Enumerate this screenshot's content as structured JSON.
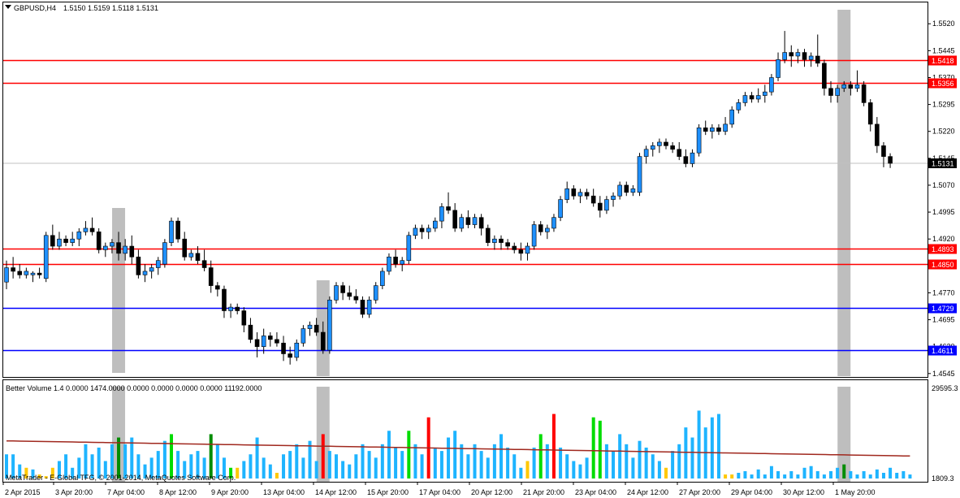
{
  "header": {
    "title": "GBPUSD,H4",
    "prices": "1.5150 1.5159 1.5118 1.5131",
    "menu_icon": "triangle-down-icon"
  },
  "indicator": {
    "title": "Better Volume 1.4 0.0000 1474.0000 0.0000 0.0000 0.0000 0.0000 11192.0000",
    "scale_top": "29595.3",
    "scale_bottom": "1809.3"
  },
  "footer": {
    "copyright": "MetaTrader - E-Global TFG, © 2001-2014, MetaQuotes Software Corp."
  },
  "colors": {
    "bull": "#1e90ff",
    "bear": "#000000",
    "level_red": "#ff0000",
    "level_blue": "#0000ff",
    "highlight": "#bebebe",
    "volume_normal": "#1eb4ff",
    "volume_climax": "#ff0000",
    "volume_churn": "#00dc00",
    "volume_churn_dark": "#008c00",
    "volume_low": "#ffc800",
    "volume_ma": "#a0281e",
    "price_tag": "#000000"
  },
  "chart_data": {
    "type": "candlestick",
    "symbol": "GBPUSD",
    "timeframe": "H4",
    "ylim": [
      1.454,
      1.555
    ],
    "y_ticks": [
      "1.5520",
      "1.5445",
      "1.5370",
      "1.5295",
      "1.5220",
      "1.5145",
      "1.5070",
      "1.4995",
      "1.4920",
      "1.4845",
      "1.4770",
      "1.4695",
      "1.4620",
      "1.4545"
    ],
    "x_ticks": [
      "2 Apr 2015",
      "3 Apr 20:00",
      "7 Apr 04:00",
      "8 Apr 12:00",
      "9 Apr 20:00",
      "13 Apr 04:00",
      "14 Apr 12:00",
      "15 Apr 20:00",
      "17 Apr 04:00",
      "20 Apr 12:00",
      "21 Apr 20:00",
      "23 Apr 04:00",
      "24 Apr 12:00",
      "27 Apr 20:00",
      "29 Apr 04:00",
      "30 Apr 12:00",
      "1 May 20:00"
    ],
    "current_price": "1.5131",
    "levels": [
      {
        "price": "1.5418",
        "color": "red"
      },
      {
        "price": "1.5356",
        "color": "red"
      },
      {
        "price": "1.4893",
        "color": "red"
      },
      {
        "price": "1.4850",
        "color": "red"
      },
      {
        "price": "1.4729",
        "color": "blue"
      },
      {
        "price": "1.4611",
        "color": "blue"
      }
    ],
    "highlight_bars": [
      17,
      48,
      127
    ],
    "candles": [
      [
        1.48,
        1.486,
        1.478,
        1.484
      ],
      [
        1.484,
        1.487,
        1.481,
        1.483
      ],
      [
        1.483,
        1.485,
        1.481,
        1.482
      ],
      [
        1.482,
        1.484,
        1.481,
        1.483
      ],
      [
        1.482,
        1.483,
        1.48,
        1.4825
      ],
      [
        1.4825,
        1.484,
        1.481,
        1.482
      ],
      [
        1.481,
        1.494,
        1.48,
        1.493
      ],
      [
        1.493,
        1.496,
        1.489,
        1.49
      ],
      [
        1.49,
        1.494,
        1.489,
        1.492
      ],
      [
        1.492,
        1.493,
        1.49,
        1.491
      ],
      [
        1.491,
        1.494,
        1.49,
        1.492
      ],
      [
        1.492,
        1.495,
        1.49,
        1.494
      ],
      [
        1.494,
        1.497,
        1.493,
        1.495
      ],
      [
        1.495,
        1.498,
        1.493,
        1.494
      ],
      [
        1.494,
        1.495,
        1.488,
        1.489
      ],
      [
        1.489,
        1.491,
        1.487,
        1.49
      ],
      [
        1.49,
        1.492,
        1.488,
        1.491
      ],
      [
        1.491,
        1.494,
        1.486,
        1.488
      ],
      [
        1.488,
        1.492,
        1.486,
        1.49
      ],
      [
        1.49,
        1.493,
        1.485,
        1.487
      ],
      [
        1.487,
        1.489,
        1.481,
        1.482
      ],
      [
        1.482,
        1.485,
        1.48,
        1.483
      ],
      [
        1.483,
        1.485,
        1.481,
        1.484
      ],
      [
        1.484,
        1.487,
        1.482,
        1.486
      ],
      [
        1.485,
        1.492,
        1.484,
        1.491
      ],
      [
        1.491,
        1.498,
        1.49,
        1.497
      ],
      [
        1.497,
        1.498,
        1.491,
        1.492
      ],
      [
        1.492,
        1.494,
        1.486,
        1.487
      ],
      [
        1.487,
        1.489,
        1.486,
        1.488
      ],
      [
        1.488,
        1.49,
        1.485,
        1.486
      ],
      [
        1.486,
        1.489,
        1.483,
        1.484
      ],
      [
        1.484,
        1.486,
        1.477,
        1.479
      ],
      [
        1.479,
        1.48,
        1.476,
        1.478
      ],
      [
        1.478,
        1.479,
        1.47,
        1.472
      ],
      [
        1.472,
        1.474,
        1.47,
        1.473
      ],
      [
        1.473,
        1.474,
        1.471,
        1.472
      ],
      [
        1.472,
        1.473,
        1.466,
        1.468
      ],
      [
        1.468,
        1.47,
        1.463,
        1.464
      ],
      [
        1.464,
        1.466,
        1.459,
        1.462
      ],
      [
        1.462,
        1.467,
        1.46,
        1.465
      ],
      [
        1.465,
        1.466,
        1.462,
        1.464
      ],
      [
        1.464,
        1.466,
        1.462,
        1.463
      ],
      [
        1.463,
        1.465,
        1.458,
        1.46
      ],
      [
        1.46,
        1.462,
        1.457,
        1.459
      ],
      [
        1.459,
        1.464,
        1.458,
        1.463
      ],
      [
        1.463,
        1.468,
        1.462,
        1.467
      ],
      [
        1.467,
        1.469,
        1.465,
        1.468
      ],
      [
        1.468,
        1.47,
        1.465,
        1.466
      ],
      [
        1.466,
        1.469,
        1.46,
        1.461
      ],
      [
        1.461,
        1.476,
        1.46,
        1.475
      ],
      [
        1.475,
        1.48,
        1.474,
        1.479
      ],
      [
        1.479,
        1.48,
        1.475,
        1.477
      ],
      [
        1.477,
        1.479,
        1.475,
        1.476
      ],
      [
        1.476,
        1.478,
        1.474,
        1.475
      ],
      [
        1.475,
        1.476,
        1.47,
        1.471
      ],
      [
        1.471,
        1.476,
        1.47,
        1.475
      ],
      [
        1.475,
        1.48,
        1.474,
        1.479
      ],
      [
        1.479,
        1.484,
        1.478,
        1.483
      ],
      [
        1.483,
        1.488,
        1.482,
        1.487
      ],
      [
        1.487,
        1.489,
        1.484,
        1.485
      ],
      [
        1.485,
        1.487,
        1.483,
        1.486
      ],
      [
        1.486,
        1.494,
        1.485,
        1.493
      ],
      [
        1.493,
        1.496,
        1.492,
        1.495
      ],
      [
        1.495,
        1.496,
        1.492,
        1.494
      ],
      [
        1.494,
        1.496,
        1.492,
        1.495
      ],
      [
        1.495,
        1.498,
        1.494,
        1.497
      ],
      [
        1.497,
        1.502,
        1.495,
        1.501
      ],
      [
        1.501,
        1.505,
        1.499,
        1.5
      ],
      [
        1.5,
        1.502,
        1.494,
        1.495
      ],
      [
        1.495,
        1.499,
        1.494,
        1.498
      ],
      [
        1.498,
        1.5,
        1.495,
        1.496
      ],
      [
        1.496,
        1.499,
        1.495,
        1.498
      ],
      [
        1.498,
        1.499,
        1.493,
        1.495
      ],
      [
        1.495,
        1.496,
        1.49,
        1.491
      ],
      [
        1.491,
        1.493,
        1.489,
        1.492
      ],
      [
        1.492,
        1.493,
        1.489,
        1.491
      ],
      [
        1.491,
        1.492,
        1.489,
        1.49
      ],
      [
        1.49,
        1.491,
        1.488,
        1.489
      ],
      [
        1.489,
        1.491,
        1.486,
        1.488
      ],
      [
        1.488,
        1.491,
        1.486,
        1.49
      ],
      [
        1.49,
        1.497,
        1.489,
        1.496
      ],
      [
        1.496,
        1.497,
        1.493,
        1.494
      ],
      [
        1.494,
        1.496,
        1.492,
        1.495
      ],
      [
        1.495,
        1.499,
        1.494,
        1.498
      ],
      [
        1.498,
        1.504,
        1.497,
        1.503
      ],
      [
        1.503,
        1.508,
        1.502,
        1.506
      ],
      [
        1.506,
        1.507,
        1.503,
        1.504
      ],
      [
        1.504,
        1.506,
        1.502,
        1.505
      ],
      [
        1.505,
        1.506,
        1.503,
        1.504
      ],
      [
        1.504,
        1.506,
        1.501,
        1.502
      ],
      [
        1.502,
        1.504,
        1.498,
        1.5
      ],
      [
        1.5,
        1.504,
        1.499,
        1.503
      ],
      [
        1.503,
        1.505,
        1.501,
        1.504
      ],
      [
        1.504,
        1.508,
        1.503,
        1.507
      ],
      [
        1.507,
        1.508,
        1.504,
        1.505
      ],
      [
        1.505,
        1.507,
        1.504,
        1.506
      ],
      [
        1.505,
        1.516,
        1.504,
        1.515
      ],
      [
        1.515,
        1.518,
        1.513,
        1.517
      ],
      [
        1.517,
        1.519,
        1.515,
        1.518
      ],
      [
        1.518,
        1.52,
        1.516,
        1.519
      ],
      [
        1.519,
        1.52,
        1.517,
        1.518
      ],
      [
        1.518,
        1.519,
        1.516,
        1.517
      ],
      [
        1.517,
        1.519,
        1.514,
        1.515
      ],
      [
        1.515,
        1.517,
        1.512,
        1.513
      ],
      [
        1.513,
        1.517,
        1.512,
        1.516
      ],
      [
        1.516,
        1.524,
        1.515,
        1.523
      ],
      [
        1.523,
        1.525,
        1.521,
        1.522
      ],
      [
        1.522,
        1.524,
        1.52,
        1.523
      ],
      [
        1.523,
        1.524,
        1.521,
        1.522
      ],
      [
        1.522,
        1.526,
        1.521,
        1.524
      ],
      [
        1.524,
        1.529,
        1.523,
        1.528
      ],
      [
        1.528,
        1.531,
        1.527,
        1.53
      ],
      [
        1.53,
        1.533,
        1.529,
        1.532
      ],
      [
        1.532,
        1.533,
        1.53,
        1.531
      ],
      [
        1.531,
        1.534,
        1.53,
        1.532
      ],
      [
        1.532,
        1.535,
        1.53,
        1.533
      ],
      [
        1.533,
        1.538,
        1.532,
        1.537
      ],
      [
        1.537,
        1.544,
        1.536,
        1.542
      ],
      [
        1.542,
        1.55,
        1.541,
        1.544
      ],
      [
        1.544,
        1.546,
        1.54,
        1.543
      ],
      [
        1.543,
        1.545,
        1.541,
        1.544
      ],
      [
        1.544,
        1.545,
        1.54,
        1.542
      ],
      [
        1.542,
        1.544,
        1.54,
        1.543
      ],
      [
        1.543,
        1.549,
        1.54,
        1.541
      ],
      [
        1.541,
        1.542,
        1.532,
        1.534
      ],
      [
        1.534,
        1.536,
        1.53,
        1.532
      ],
      [
        1.532,
        1.535,
        1.53,
        1.534
      ],
      [
        1.534,
        1.536,
        1.533,
        1.535
      ],
      [
        1.535,
        1.536,
        1.532,
        1.534
      ],
      [
        1.534,
        1.539,
        1.533,
        1.535
      ],
      [
        1.535,
        1.536,
        1.529,
        1.53
      ],
      [
        1.53,
        1.531,
        1.522,
        1.524
      ],
      [
        1.524,
        1.526,
        1.516,
        1.518
      ],
      [
        1.518,
        1.519,
        1.512,
        1.515
      ],
      [
        1.515,
        1.5159,
        1.5118,
        1.5131
      ]
    ],
    "volume_ylim": [
      1809.3,
      29595.3
    ],
    "volume_ma_start": 13000,
    "volume_ma_end": 8500,
    "volumes": [
      [
        9000,
        "n"
      ],
      [
        9000,
        "n"
      ],
      [
        6000,
        "n"
      ],
      [
        5000,
        "l"
      ],
      [
        4500,
        "n"
      ],
      [
        3000,
        "l"
      ],
      [
        2500,
        "l"
      ],
      [
        5000,
        "l"
      ],
      [
        7000,
        "n"
      ],
      [
        9000,
        "n"
      ],
      [
        5000,
        "n"
      ],
      [
        8000,
        "n"
      ],
      [
        12000,
        "n"
      ],
      [
        9000,
        "n"
      ],
      [
        11000,
        "n"
      ],
      [
        7000,
        "n"
      ],
      [
        12000,
        "n"
      ],
      [
        14000,
        "d"
      ],
      [
        12000,
        "n"
      ],
      [
        14000,
        "n"
      ],
      [
        9000,
        "n"
      ],
      [
        6000,
        "n"
      ],
      [
        8000,
        "n"
      ],
      [
        10000,
        "n"
      ],
      [
        13000,
        "n"
      ],
      [
        15000,
        "c"
      ],
      [
        10000,
        "n"
      ],
      [
        7000,
        "n"
      ],
      [
        9000,
        "n"
      ],
      [
        10000,
        "n"
      ],
      [
        8000,
        "n"
      ],
      [
        15000,
        "d"
      ],
      [
        12000,
        "n"
      ],
      [
        8000,
        "n"
      ],
      [
        5000,
        "c"
      ],
      [
        5000,
        "l"
      ],
      [
        7000,
        "n"
      ],
      [
        9000,
        "n"
      ],
      [
        14000,
        "n"
      ],
      [
        8000,
        "n"
      ],
      [
        6000,
        "n"
      ],
      [
        3500,
        "l"
      ],
      [
        9000,
        "n"
      ],
      [
        10000,
        "n"
      ],
      [
        12000,
        "n"
      ],
      [
        8000,
        "n"
      ],
      [
        13000,
        "n"
      ],
      [
        7000,
        "n"
      ],
      [
        15000,
        "x"
      ],
      [
        10000,
        "n"
      ],
      [
        9000,
        "n"
      ],
      [
        7000,
        "n"
      ],
      [
        6000,
        "n"
      ],
      [
        9000,
        "n"
      ],
      [
        12000,
        "n"
      ],
      [
        10000,
        "n"
      ],
      [
        8000,
        "n"
      ],
      [
        12000,
        "n"
      ],
      [
        16000,
        "n"
      ],
      [
        11000,
        "n"
      ],
      [
        10000,
        "n"
      ],
      [
        16000,
        "c"
      ],
      [
        12000,
        "n"
      ],
      [
        9000,
        "n"
      ],
      [
        20000,
        "x"
      ],
      [
        11000,
        "n"
      ],
      [
        10000,
        "n"
      ],
      [
        14000,
        "n"
      ],
      [
        16000,
        "n"
      ],
      [
        12000,
        "n"
      ],
      [
        9000,
        "n"
      ],
      [
        12000,
        "n"
      ],
      [
        10000,
        "n"
      ],
      [
        8000,
        "n"
      ],
      [
        12000,
        "n"
      ],
      [
        15000,
        "n"
      ],
      [
        11000,
        "n"
      ],
      [
        9000,
        "n"
      ],
      [
        5000,
        "n"
      ],
      [
        7000,
        "l"
      ],
      [
        11000,
        "n"
      ],
      [
        15000,
        "c"
      ],
      [
        12000,
        "n"
      ],
      [
        21000,
        "x"
      ],
      [
        11000,
        "n"
      ],
      [
        9000,
        "n"
      ],
      [
        7000,
        "n"
      ],
      [
        6000,
        "n"
      ],
      [
        8000,
        "n"
      ],
      [
        20000,
        "c"
      ],
      [
        19000,
        "c"
      ],
      [
        12000,
        "n"
      ],
      [
        10000,
        "n"
      ],
      [
        15000,
        "n"
      ],
      [
        12000,
        "n"
      ],
      [
        8000,
        "n"
      ],
      [
        13000,
        "n"
      ],
      [
        11000,
        "n"
      ],
      [
        9000,
        "n"
      ],
      [
        7000,
        "n"
      ],
      [
        5000,
        "l"
      ],
      [
        10000,
        "n"
      ],
      [
        12000,
        "n"
      ],
      [
        17000,
        "n"
      ],
      [
        14000,
        "n"
      ],
      [
        22000,
        "n"
      ],
      [
        17000,
        "n"
      ],
      [
        20000,
        "n"
      ],
      [
        21000,
        "n"
      ],
      [
        3000,
        "l"
      ],
      [
        3000,
        "l"
      ],
      [
        3500,
        "n"
      ],
      [
        4000,
        "n"
      ],
      [
        3000,
        "n"
      ],
      [
        4500,
        "n"
      ],
      [
        3000,
        "n"
      ],
      [
        5500,
        "n"
      ],
      [
        4000,
        "n"
      ],
      [
        3000,
        "n"
      ],
      [
        4000,
        "n"
      ],
      [
        3000,
        "n"
      ],
      [
        5000,
        "n"
      ],
      [
        5500,
        "n"
      ],
      [
        4000,
        "n"
      ],
      [
        3000,
        "n"
      ],
      [
        4000,
        "n"
      ],
      [
        5000,
        "n"
      ],
      [
        6000,
        "d"
      ],
      [
        4000,
        "n"
      ],
      [
        3000,
        "n"
      ],
      [
        4000,
        "n"
      ],
      [
        3000,
        "n"
      ],
      [
        4500,
        "n"
      ],
      [
        3500,
        "n"
      ],
      [
        5000,
        "n"
      ],
      [
        3500,
        "n"
      ],
      [
        4000,
        "n"
      ],
      [
        3000,
        "n"
      ]
    ]
  }
}
